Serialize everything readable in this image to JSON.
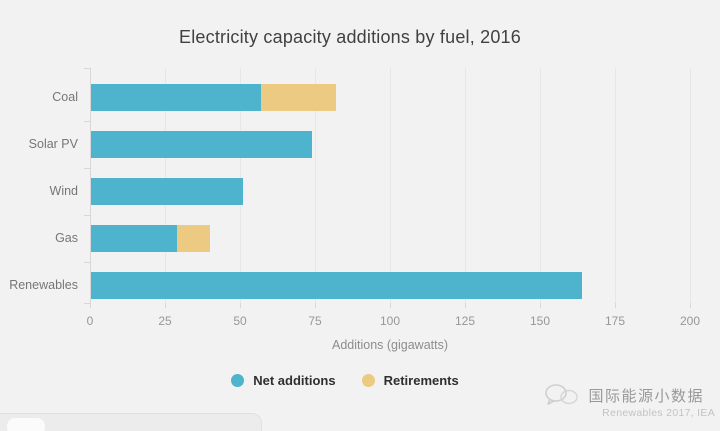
{
  "title": "Electricity capacity additions by fuel, 2016",
  "chart_data": {
    "type": "bar",
    "orientation": "horizontal",
    "title": "Electricity capacity additions by fuel, 2016",
    "categories": [
      "Coal",
      "Solar PV",
      "Wind",
      "Gas",
      "Renewables"
    ],
    "series": [
      {
        "name": "Net additions",
        "color": "#4eb3cd",
        "values": [
          57,
          74,
          51,
          29,
          164
        ]
      },
      {
        "name": "Retirements",
        "color": "#ecca82",
        "values": [
          25,
          0,
          0,
          11,
          0
        ]
      }
    ],
    "stacked": true,
    "xlabel": "Additions (gigawatts)",
    "xlim": [
      0,
      200
    ],
    "xticks": [
      0,
      25,
      50,
      75,
      100,
      125,
      150,
      175,
      200
    ],
    "grid": true,
    "legend_position": "bottom"
  },
  "legend": {
    "items": [
      {
        "label": "Net additions",
        "color": "#4eb3cd"
      },
      {
        "label": "Retirements",
        "color": "#ecca82"
      }
    ]
  },
  "source": "Renewables 2017, IEA",
  "watermark": {
    "text": "国际能源小数据",
    "icon": "chat-bubbles-logo"
  },
  "colors": {
    "background": "#f1f2f1",
    "net_additions": "#4eb3cd",
    "retirements": "#ecca82",
    "axis": "#d7d7d7",
    "grid": "#e6e7e6"
  }
}
